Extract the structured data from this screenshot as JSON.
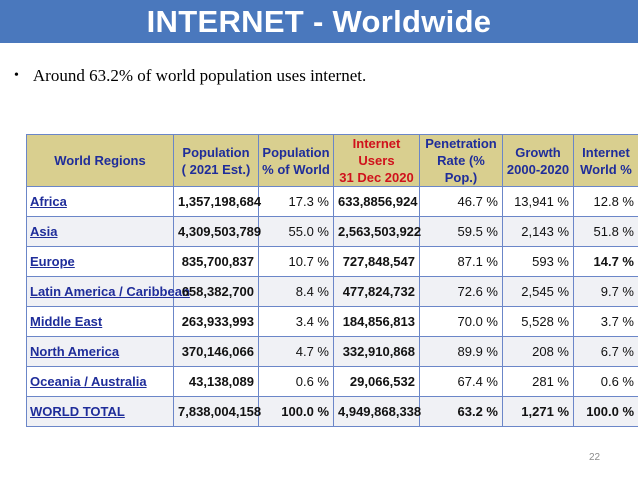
{
  "title": "INTERNET - Worldwide",
  "bullet": {
    "marker": "•",
    "text": "Around 63.2% of world population uses internet."
  },
  "table": {
    "headers": [
      "World Regions",
      "Population\n( 2021 Est.)",
      "Population\n% of World",
      "Internet Users\n31 Dec 2020",
      "Penetration\nRate (% Pop.)",
      "Growth\n2000-2020",
      "Internet\nWorld %"
    ],
    "rows": [
      [
        "Africa",
        "1,357,198,684",
        "17.3 %",
        "633,8856,924",
        "46.7 %",
        "13,941 %",
        "12.8 %"
      ],
      [
        "Asia",
        "4,309,503,789",
        "55.0 %",
        "2,563,503,922",
        "59.5 %",
        "2,143 %",
        "51.8 %"
      ],
      [
        "Europe",
        "835,700,837",
        "10.7 %",
        "727,848,547",
        "87.1 %",
        "593 %",
        "14.7 %"
      ],
      [
        "Latin America / Caribbean",
        "658,382,700",
        "8.4 %",
        "477,824,732",
        "72.6 %",
        "2,545 %",
        "9.7 %"
      ],
      [
        "Middle East",
        "263,933,993",
        "3.4 %",
        "184,856,813",
        "70.0 %",
        "5,528 %",
        "3.7 %"
      ],
      [
        "North America",
        "370,146,066",
        "4.7 %",
        "332,910,868",
        "89.9 %",
        "208 %",
        "6.7 %"
      ],
      [
        "Oceania / Australia",
        "43,138,089",
        "0.6 %",
        "29,066,532",
        "67.4 %",
        "281 %",
        "0.6 %"
      ]
    ],
    "total": [
      "WORLD TOTAL",
      "7,838,004,158",
      "100.0 %",
      "4,949,868,338",
      "63.2 %",
      "1,271 %",
      "100.0 %"
    ]
  },
  "page_number": "22"
}
